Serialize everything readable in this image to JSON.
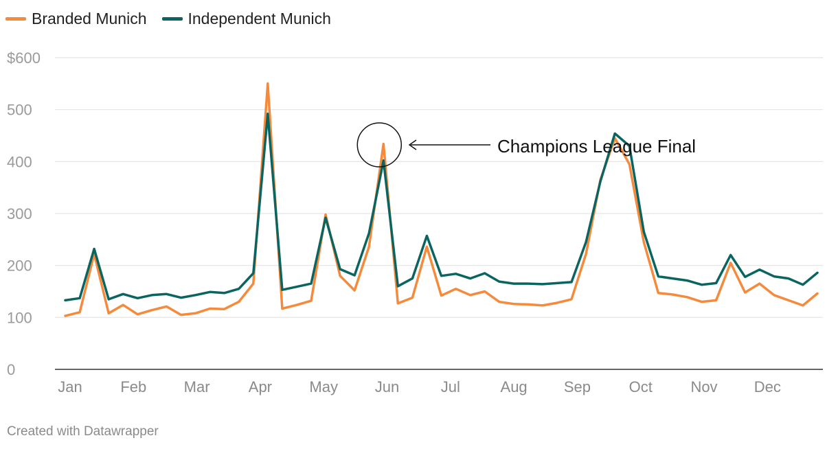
{
  "chart_data": {
    "type": "line",
    "ylim": [
      0,
      600
    ],
    "y_ticks": [
      0,
      100,
      200,
      300,
      400,
      500,
      600
    ],
    "y_tick_labels": [
      "0",
      "100",
      "200",
      "300",
      "400",
      "500",
      "$600"
    ],
    "x_tick_labels": [
      "Jan",
      "Feb",
      "Mar",
      "Apr",
      "May",
      "Jun",
      "Jul",
      "Aug",
      "Sep",
      "Oct",
      "Nov",
      "Dec"
    ],
    "grid": true,
    "legend_position": "top-left",
    "series": [
      {
        "name": "Branded Munich",
        "color": "#f58a3c",
        "values": [
          103,
          110,
          222,
          108,
          124,
          106,
          114,
          121,
          105,
          108,
          117,
          116,
          130,
          165,
          550,
          117,
          124,
          132,
          298,
          180,
          152,
          236,
          434,
          127,
          138,
          236,
          142,
          155,
          143,
          150,
          130,
          126,
          125,
          123,
          128,
          135,
          222,
          365,
          445,
          395,
          245,
          147,
          144,
          139,
          130,
          133,
          205,
          148,
          165,
          143,
          133,
          123,
          146
        ]
      },
      {
        "name": "Independent Munich",
        "color": "#0a6560",
        "values": [
          133,
          137,
          232,
          135,
          145,
          137,
          143,
          145,
          138,
          143,
          149,
          147,
          155,
          185,
          492,
          153,
          159,
          165,
          292,
          193,
          181,
          262,
          402,
          160,
          175,
          257,
          180,
          184,
          175,
          185,
          169,
          165,
          165,
          164,
          166,
          168,
          245,
          362,
          454,
          430,
          265,
          179,
          175,
          171,
          163,
          166,
          220,
          178,
          192,
          179,
          175,
          163,
          186
        ]
      }
    ],
    "annotation": {
      "text": "Champions League Final",
      "point_index": 22
    }
  },
  "footer": "Created with Datawrapper"
}
